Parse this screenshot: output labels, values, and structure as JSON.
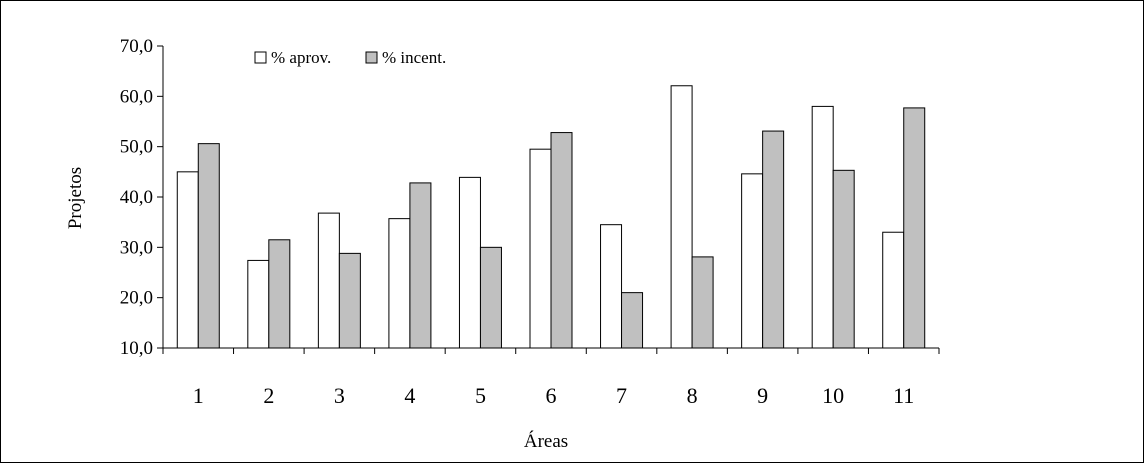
{
  "chart_data": {
    "type": "bar",
    "title": "",
    "xlabel": "Áreas",
    "ylabel": "Projetos",
    "ylim": [
      10,
      70
    ],
    "yticks": [
      10,
      20,
      30,
      40,
      50,
      60,
      70
    ],
    "ytick_labels": [
      "10,0",
      "20,0",
      "30,0",
      "40,0",
      "50,0",
      "60,0",
      "70,0"
    ],
    "categories": [
      "1",
      "2",
      "3",
      "4",
      "5",
      "6",
      "7",
      "8",
      "9",
      "10",
      "11"
    ],
    "series": [
      {
        "name": "% aprov.",
        "color": "#ffffff",
        "values": [
          45.0,
          27.4,
          36.8,
          35.7,
          43.9,
          49.5,
          34.5,
          62.1,
          44.6,
          58.0,
          33.0
        ]
      },
      {
        "name": "% incent.",
        "color": "#c0c0c0",
        "values": [
          50.6,
          31.5,
          28.8,
          42.8,
          30.0,
          52.8,
          21.0,
          28.1,
          53.1,
          45.3,
          57.7
        ]
      }
    ],
    "grid": false,
    "legend": "top-left"
  }
}
